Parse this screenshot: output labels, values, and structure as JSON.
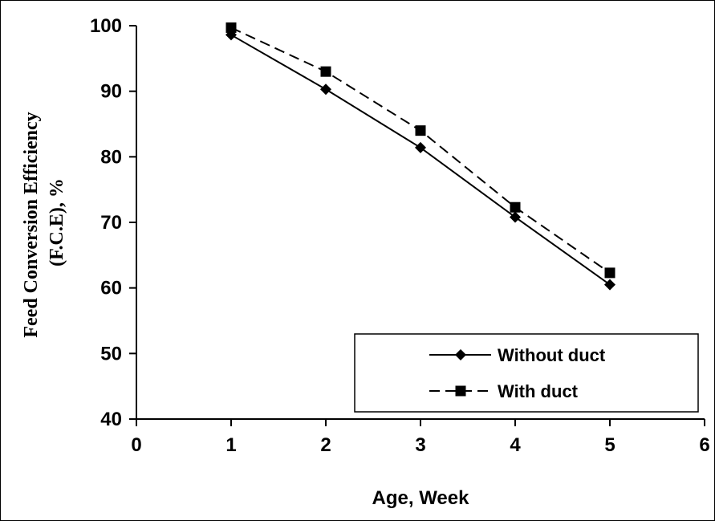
{
  "chart_data": {
    "type": "line",
    "xlabel": "Age, Week",
    "ylabel_lines": [
      "Feed Conversion Efficiency",
      "(F.C.E), %"
    ],
    "xlim": [
      0,
      6
    ],
    "ylim": [
      40,
      100
    ],
    "x_ticks": [
      0,
      1,
      2,
      3,
      4,
      5,
      6
    ],
    "y_ticks": [
      40,
      50,
      60,
      70,
      80,
      90,
      100
    ],
    "grid": false,
    "legend_position": "bottom-right",
    "x": [
      1,
      2,
      3,
      4,
      5
    ],
    "series": [
      {
        "name": "Without duct",
        "values": [
          98.6,
          90.3,
          81.4,
          70.8,
          60.5
        ],
        "line_style": "solid",
        "marker": "diamond",
        "color": "#000000"
      },
      {
        "name": "With duct",
        "values": [
          99.7,
          93.0,
          84.0,
          72.3,
          62.3
        ],
        "line_style": "dashed",
        "marker": "square",
        "color": "#000000"
      }
    ]
  }
}
